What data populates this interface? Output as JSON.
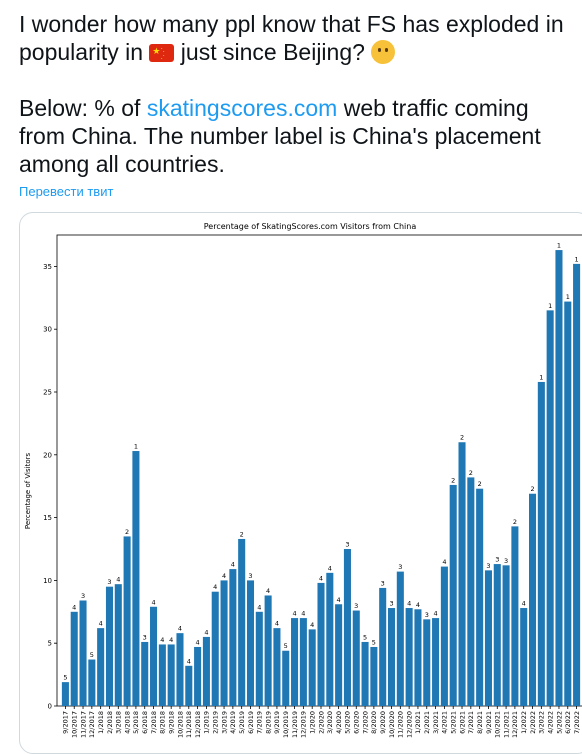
{
  "tweet": {
    "line1": "I wonder how many ppl know that FS has exploded in",
    "line2_before": "popularity in ",
    "flag_icon": "china-flag-icon",
    "line2_after": " just since Beijing? ",
    "emoji_icon": "thinking-face-icon",
    "para2_before": "Below: % of ",
    "link_text": "skatingscores.com",
    "para2_after": " web traffic coming from China. The number label is China's placement among all countries.",
    "translate_label": "Перевести твит"
  },
  "chart_data": {
    "type": "bar",
    "title": "Percentage of SkatingScores.com Visitors from China",
    "ylabel": "Percentage of Visitors",
    "xlabel": "",
    "ylim": [
      0,
      37.5
    ],
    "yticks": [
      0,
      5,
      10,
      15,
      20,
      25,
      30,
      35
    ],
    "bar_color": "#1f77b4",
    "categories": [
      "9/2017",
      "10/2017",
      "11/2017",
      "12/2017",
      "1/2018",
      "2/2018",
      "3/2018",
      "4/2018",
      "5/2018",
      "6/2018",
      "7/2018",
      "8/2018",
      "9/2018",
      "10/2018",
      "11/2018",
      "12/2018",
      "1/2019",
      "2/2019",
      "3/2019",
      "4/2019",
      "5/2019",
      "6/2019",
      "7/2019",
      "8/2019",
      "9/2019",
      "10/2019",
      "11/2019",
      "12/2019",
      "1/2020",
      "2/2020",
      "3/2020",
      "4/2020",
      "5/2020",
      "6/2020",
      "7/2020",
      "8/2020",
      "9/2020",
      "10/2020",
      "11/2020",
      "12/2020",
      "1/2021",
      "2/2021",
      "3/2021",
      "4/2021",
      "5/2021",
      "6/2021",
      "7/2021",
      "8/2021",
      "9/2021",
      "10/2021",
      "11/2021",
      "12/2021",
      "1/2022",
      "2/2022",
      "3/2022",
      "4/2022",
      "5/2022",
      "6/2022",
      "7/2022"
    ],
    "values": [
      1.9,
      7.5,
      8.4,
      3.7,
      6.2,
      9.5,
      9.7,
      13.5,
      20.3,
      5.1,
      7.9,
      4.9,
      4.9,
      5.8,
      3.2,
      4.7,
      5.5,
      9.1,
      10.0,
      10.9,
      13.3,
      10.0,
      7.5,
      8.8,
      6.2,
      4.4,
      7.0,
      7.0,
      6.1,
      9.8,
      10.6,
      8.1,
      12.5,
      7.6,
      5.1,
      4.7,
      9.4,
      7.8,
      10.7,
      7.8,
      7.7,
      6.9,
      7.0,
      11.1,
      17.6,
      21.0,
      18.2,
      17.3,
      10.8,
      11.3,
      11.2,
      14.3,
      7.8,
      16.9,
      25.8,
      31.5,
      36.3,
      32.2,
      35.2
    ],
    "labels": [
      "5",
      "4",
      "3",
      "5",
      "4",
      "3",
      "4",
      "2",
      "1",
      "3",
      "4",
      "4",
      "4",
      "4",
      "4",
      "4",
      "4",
      "4",
      "4",
      "4",
      "2",
      "3",
      "4",
      "4",
      "4",
      "5",
      "4",
      "4",
      "4",
      "4",
      "4",
      "4",
      "3",
      "3",
      "5",
      "5",
      "3",
      "3",
      "3",
      "4",
      "4",
      "3",
      "4",
      "4",
      "2",
      "2",
      "2",
      "2",
      "3",
      "3",
      "3",
      "2",
      "4",
      "2",
      "1",
      "1",
      "1",
      "1",
      "1"
    ]
  }
}
